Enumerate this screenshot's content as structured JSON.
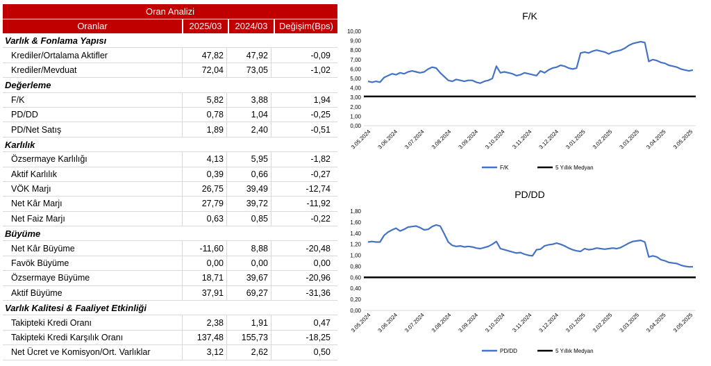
{
  "table": {
    "title": "Oran Analizi",
    "headers": [
      "Oranlar",
      "2025/03",
      "2024/03",
      "Değişim(Bps)"
    ],
    "sections": [
      {
        "name": "Varlık & Fonlama Yapısı",
        "rows": [
          {
            "label": "Krediler/Ortalama Aktifler",
            "v1": "47,82",
            "v2": "47,92",
            "chg": "-0,09"
          },
          {
            "label": "Krediler/Mevduat",
            "v1": "72,04",
            "v2": "73,05",
            "chg": "-1,02"
          }
        ]
      },
      {
        "name": "Değerleme",
        "rows": [
          {
            "label": "F/K",
            "v1": "5,82",
            "v2": "3,88",
            "chg": "1,94"
          },
          {
            "label": "PD/DD",
            "v1": "0,78",
            "v2": "1,04",
            "chg": "-0,25"
          },
          {
            "label": "PD/Net Satış",
            "v1": "1,89",
            "v2": "2,40",
            "chg": "-0,51"
          }
        ]
      },
      {
        "name": "Karlılık",
        "rows": [
          {
            "label": "Özsermaye Karlılığı",
            "v1": "4,13",
            "v2": "5,95",
            "chg": "-1,82"
          },
          {
            "label": "Aktif Karlılık",
            "v1": "0,39",
            "v2": "0,66",
            "chg": "-0,27"
          },
          {
            "label": "VÖK Marjı",
            "v1": "26,75",
            "v2": "39,49",
            "chg": "-12,74"
          },
          {
            "label": "Net Kâr Marjı",
            "v1": "27,79",
            "v2": "39,72",
            "chg": "-11,92"
          },
          {
            "label": "Net Faiz Marjı",
            "v1": "0,63",
            "v2": "0,85",
            "chg": "-0,22"
          }
        ]
      },
      {
        "name": "Büyüme",
        "rows": [
          {
            "label": "Net Kâr Büyüme",
            "v1": "-11,60",
            "v2": "8,88",
            "chg": "-20,48"
          },
          {
            "label": "Favök Büyüme",
            "v1": "0,00",
            "v2": "0,00",
            "chg": "0,00"
          },
          {
            "label": "Özsermaye Büyüme",
            "v1": "18,71",
            "v2": "39,67",
            "chg": "-20,96"
          },
          {
            "label": "Aktif Büyüme",
            "v1": "37,91",
            "v2": "69,27",
            "chg": "-31,36"
          }
        ]
      },
      {
        "name": "Varlık Kalitesi & Faaliyet Etkinliği",
        "rows": [
          {
            "label": "Takipteki Kredi Oranı",
            "v1": "2,38",
            "v2": "1,91",
            "chg": "0,47"
          },
          {
            "label": "Takipteki Kredi Karşılık Oranı",
            "v1": "137,48",
            "v2": "155,73",
            "chg": "-18,25"
          },
          {
            "label": "Net Ücret ve Komisyon/Ort. Varlıklar",
            "v1": "3,12",
            "v2": "2,62",
            "chg": "0,50"
          }
        ]
      }
    ]
  },
  "chart_data": [
    {
      "type": "line",
      "title": "F/K",
      "ylim": [
        0,
        10
      ],
      "yticks": [
        "0,00",
        "1,00",
        "2,00",
        "3,00",
        "4,00",
        "5,00",
        "6,00",
        "7,00",
        "8,00",
        "9,00",
        "10,00"
      ],
      "xticks": [
        "3.05.2024",
        "3.06.2024",
        "3.07.2024",
        "3.08.2024",
        "3.09.2024",
        "3.10.2024",
        "3.11.2024",
        "3.12.2024",
        "3.01.2025",
        "3.02.2025",
        "3.03.2025",
        "3.04.2025",
        "3.05.2025"
      ],
      "grid": false,
      "legend": "bottom",
      "series": [
        {
          "name": "F/K",
          "color": "#4472c4",
          "values": [
            4.7,
            4.6,
            4.7,
            4.6,
            5.1,
            5.3,
            5.5,
            5.4,
            5.6,
            5.5,
            5.7,
            5.8,
            5.7,
            5.6,
            5.7,
            6.0,
            6.2,
            6.1,
            5.6,
            5.2,
            4.8,
            4.7,
            4.9,
            4.8,
            4.7,
            4.8,
            4.8,
            4.6,
            4.5,
            4.7,
            4.8,
            5.0,
            6.3,
            5.6,
            5.7,
            5.6,
            5.5,
            5.3,
            5.4,
            5.6,
            5.5,
            5.4,
            5.3,
            5.8,
            5.6,
            5.9,
            6.1,
            6.2,
            6.4,
            6.3,
            6.1,
            6.0,
            6.1,
            7.7,
            7.8,
            7.7,
            7.9,
            8.0,
            7.9,
            7.8,
            7.6,
            7.8,
            7.9,
            8.0,
            8.2,
            8.5,
            8.7,
            8.8,
            8.9,
            8.8,
            6.8,
            7.0,
            6.9,
            6.7,
            6.6,
            6.4,
            6.3,
            6.2,
            6.0,
            5.9,
            5.8,
            5.9
          ]
        },
        {
          "name": "5 Yıllık Medyan",
          "color": "#000000",
          "constant": 3.1
        }
      ]
    },
    {
      "type": "line",
      "title": "PD/DD",
      "ylim": [
        0,
        1.8
      ],
      "yticks": [
        "0,00",
        "0,20",
        "0,40",
        "0,60",
        "0,80",
        "1,00",
        "1,20",
        "1,40",
        "1,60",
        "1,80"
      ],
      "xticks": [
        "3.05.2024",
        "3.06.2024",
        "3.07.2024",
        "3.08.2024",
        "3.09.2024",
        "3.10.2024",
        "3.11.2024",
        "3.12.2024",
        "3.01.2025",
        "3.02.2025",
        "3.03.2025",
        "3.04.2025",
        "3.05.2025"
      ],
      "grid": false,
      "legend": "bottom",
      "series": [
        {
          "name": "PD/DD",
          "color": "#4472c4",
          "values": [
            1.24,
            1.25,
            1.24,
            1.24,
            1.36,
            1.42,
            1.46,
            1.49,
            1.44,
            1.47,
            1.51,
            1.52,
            1.53,
            1.5,
            1.46,
            1.47,
            1.52,
            1.55,
            1.53,
            1.39,
            1.24,
            1.18,
            1.16,
            1.17,
            1.15,
            1.16,
            1.15,
            1.13,
            1.12,
            1.14,
            1.16,
            1.2,
            1.25,
            1.12,
            1.1,
            1.08,
            1.06,
            1.04,
            1.05,
            1.02,
            1.0,
            0.99,
            1.1,
            1.11,
            1.17,
            1.19,
            1.2,
            1.22,
            1.2,
            1.17,
            1.13,
            1.1,
            1.08,
            1.07,
            1.12,
            1.1,
            1.11,
            1.13,
            1.12,
            1.11,
            1.12,
            1.13,
            1.12,
            1.14,
            1.18,
            1.22,
            1.25,
            1.26,
            1.27,
            1.24,
            0.97,
            0.99,
            0.97,
            0.92,
            0.9,
            0.87,
            0.86,
            0.85,
            0.82,
            0.8,
            0.79,
            0.79
          ]
        },
        {
          "name": "5 Yıllık Medyan",
          "color": "#000000",
          "constant": 0.6
        }
      ]
    }
  ]
}
